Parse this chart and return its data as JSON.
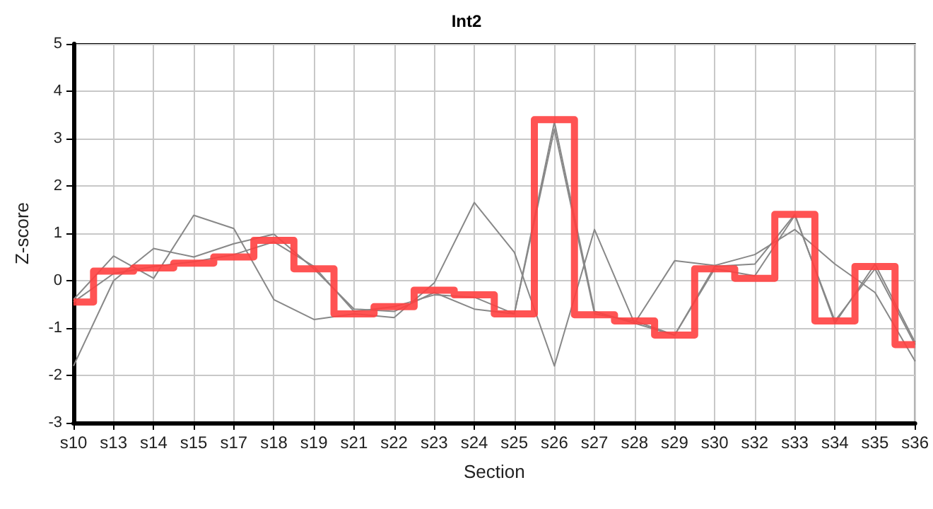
{
  "chart_data": {
    "type": "line",
    "title": "Int2",
    "xlabel": "Section",
    "ylabel": "Z-score",
    "categories": [
      "s10",
      "s13",
      "s14",
      "s15",
      "s17",
      "s18",
      "s19",
      "s21",
      "s22",
      "s23",
      "s24",
      "s25",
      "s26",
      "s27",
      "s28",
      "s29",
      "s30",
      "s32",
      "s33",
      "s34",
      "s35",
      "s36"
    ],
    "ylim": [
      -3,
      5
    ],
    "yticks": [
      -3,
      -2,
      -1,
      0,
      1,
      2,
      3,
      4,
      5
    ],
    "grid": true,
    "marker": "none",
    "line_style": "solid",
    "series": [
      {
        "color": "#888888",
        "values": [
          -0.4,
          0.52,
          0.05,
          1.38,
          1.1,
          -0.4,
          -0.82,
          -0.7,
          -0.78,
          -0.05,
          1.65,
          0.6,
          -1.8,
          1.08,
          -0.9,
          0.42,
          0.32,
          0.55,
          1.08,
          0.35,
          -0.25,
          -1.7
        ]
      },
      {
        "color": "#888888",
        "values": [
          -1.8,
          0.0,
          0.68,
          0.5,
          0.78,
          0.98,
          0.25,
          -0.6,
          -0.65,
          -0.25,
          -0.6,
          -0.7,
          3.35,
          -0.65,
          -0.9,
          -1.15,
          0.3,
          0.35,
          1.4,
          -0.9,
          0.35,
          -1.3
        ]
      },
      {
        "color": "#888888",
        "values": [
          -0.45,
          0.15,
          0.3,
          0.4,
          0.55,
          0.82,
          0.3,
          -0.65,
          -0.55,
          -0.3,
          -0.35,
          -0.7,
          3.2,
          -0.7,
          -0.85,
          -1.15,
          0.25,
          0.1,
          1.38,
          -0.85,
          0.25,
          -1.35
        ]
      },
      {
        "type": "step",
        "color": "#ff4040",
        "values": [
          -0.45,
          0.2,
          0.27,
          0.37,
          0.5,
          0.85,
          0.25,
          -0.7,
          -0.55,
          -0.2,
          -0.3,
          -0.7,
          3.4,
          -0.72,
          -0.85,
          -1.15,
          0.25,
          0.05,
          1.4,
          -0.85,
          0.3,
          -1.35
        ]
      }
    ]
  }
}
